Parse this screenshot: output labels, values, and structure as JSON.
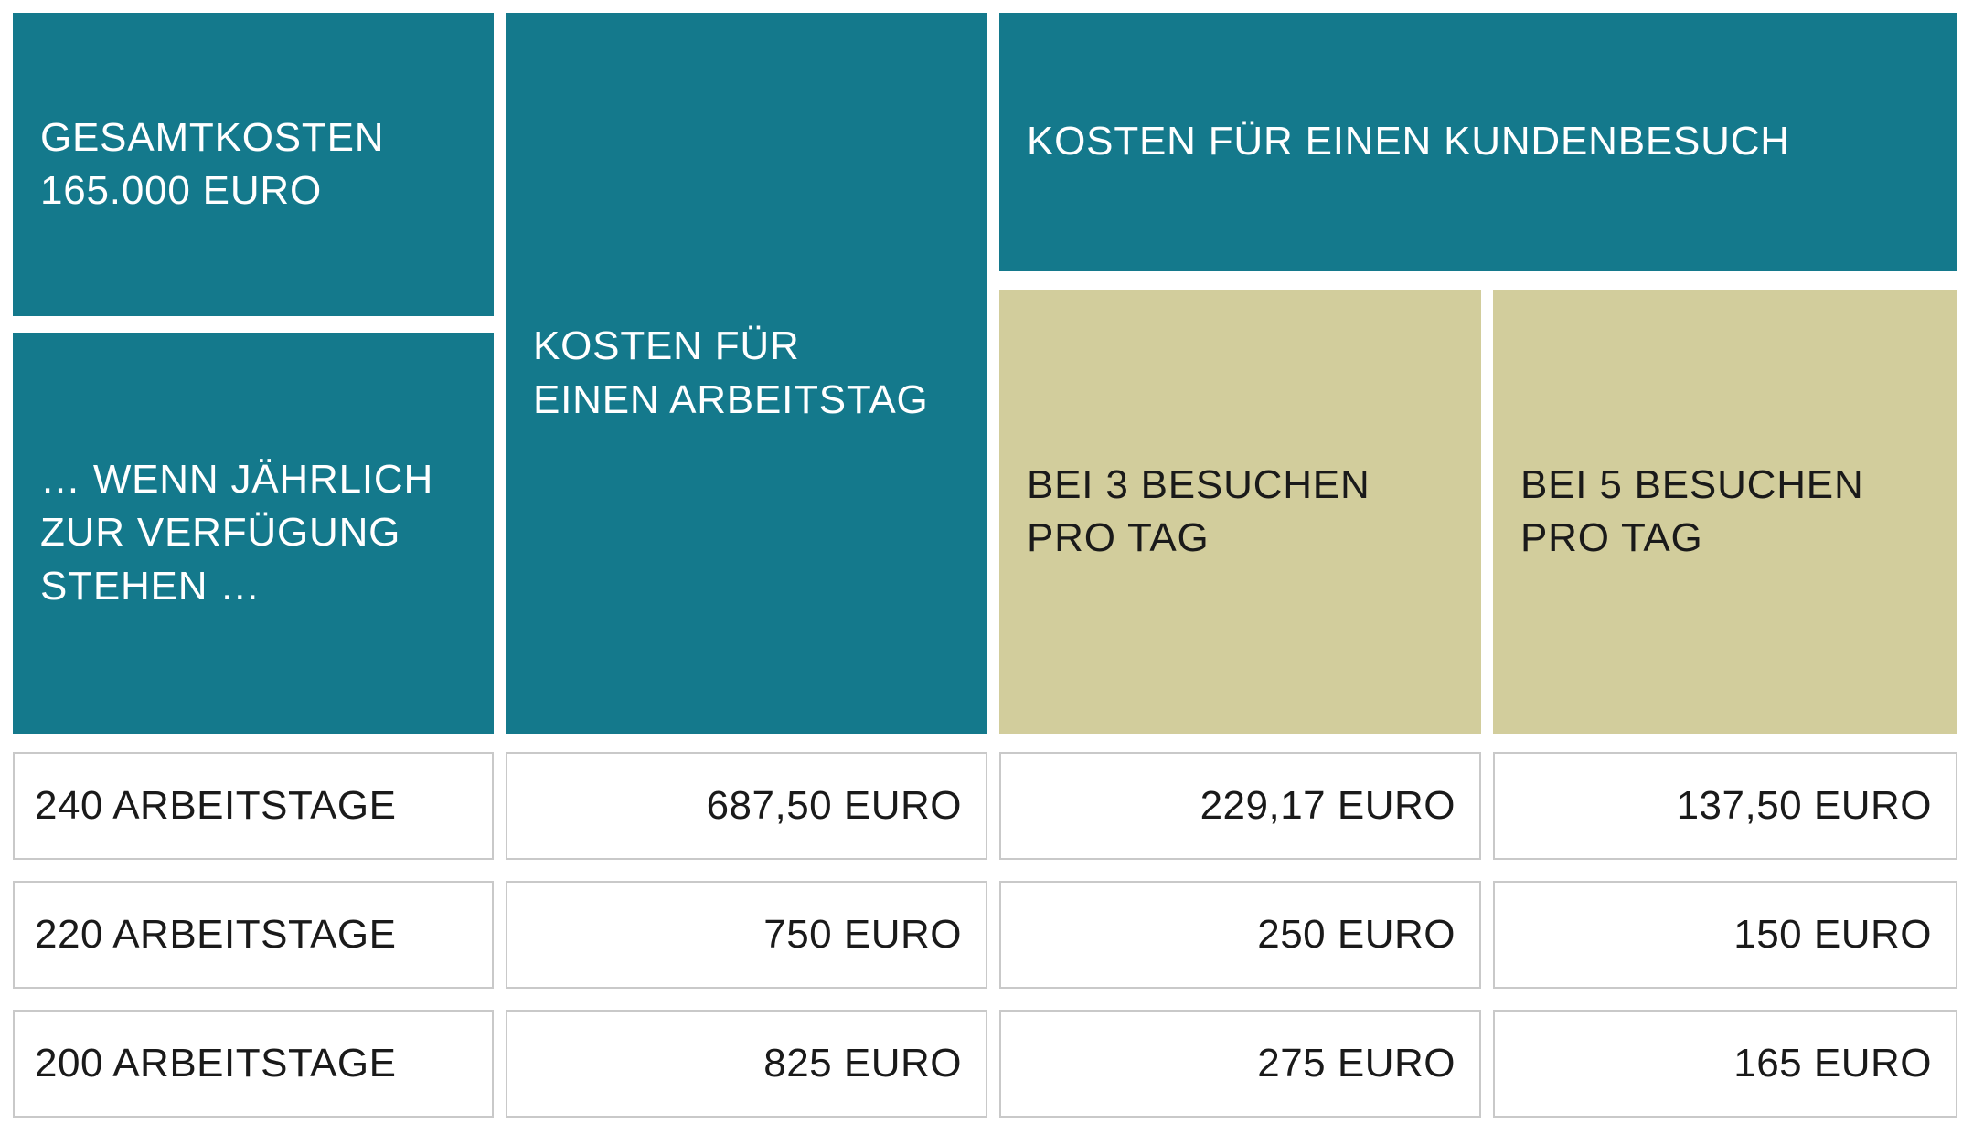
{
  "colors": {
    "teal": "#14798C",
    "khaki": "#D2CD9C",
    "cell_border": "#C9C9C9",
    "text_light": "#FFFFFF",
    "text_dark": "#1A1A1A",
    "background": "#FFFFFF"
  },
  "blocks": {
    "total_cost": "GESAMTKOSTEN\n165.000 EURO",
    "availability": "… WENN JÄHRLICH\nZUR VERFÜGUNG\nSTEHEN …",
    "cost_per_workday": "KOSTEN FÜR\nEINEN ARBEITSTAG",
    "cost_per_visit": "KOSTEN FÜR EINEN KUNDENBESUCH",
    "visits_3": "BEI 3 BESUCHEN\nPRO TAG",
    "visits_5": "BEI 5 BESUCHEN\nPRO TAG"
  },
  "table": {
    "rows": [
      {
        "workdays": "240 ARBEITSTAGE",
        "cost_per_day": "687,50 EURO",
        "cost_3_visits": "229,17 EURO",
        "cost_5_visits": "137,50 EURO"
      },
      {
        "workdays": "220 ARBEITSTAGE",
        "cost_per_day": "750 EURO",
        "cost_3_visits": "250 EURO",
        "cost_5_visits": "150 EURO"
      },
      {
        "workdays": "200 ARBEITSTAGE",
        "cost_per_day": "825 EURO",
        "cost_3_visits": "275 EURO",
        "cost_5_visits": "165 EURO"
      }
    ]
  },
  "chart_data": {
    "type": "table",
    "title": "GESAMTKOSTEN 165.000 EURO",
    "row_dimension_label": "… WENN JÄHRLICH ZUR VERFÜGUNG STEHEN …",
    "column_groups": [
      "KOSTEN FÜR EINEN ARBEITSTAG",
      "KOSTEN FÜR EINEN KUNDENBESUCH"
    ],
    "columns": [
      "ARBEITSTAGE",
      "KOSTEN FÜR EINEN ARBEITSTAG",
      "KOSTEN FÜR EINEN KUNDENBESUCH – BEI 3 BESUCHEN PRO TAG",
      "KOSTEN FÜR EINEN KUNDENBESUCH – BEI 5 BESUCHEN PRO TAG"
    ],
    "currency": "EURO",
    "total_cost_eur": 165000,
    "rows": [
      {
        "arbeitstage": 240,
        "kosten_pro_arbeitstag_eur": 687.5,
        "kosten_pro_besuch_bei_3_eur": 229.17,
        "kosten_pro_besuch_bei_5_eur": 137.5
      },
      {
        "arbeitstage": 220,
        "kosten_pro_arbeitstag_eur": 750,
        "kosten_pro_besuch_bei_3_eur": 250,
        "kosten_pro_besuch_bei_5_eur": 150
      },
      {
        "arbeitstage": 200,
        "kosten_pro_arbeitstag_eur": 825,
        "kosten_pro_besuch_bei_3_eur": 275,
        "kosten_pro_besuch_bei_5_eur": 165
      }
    ]
  }
}
